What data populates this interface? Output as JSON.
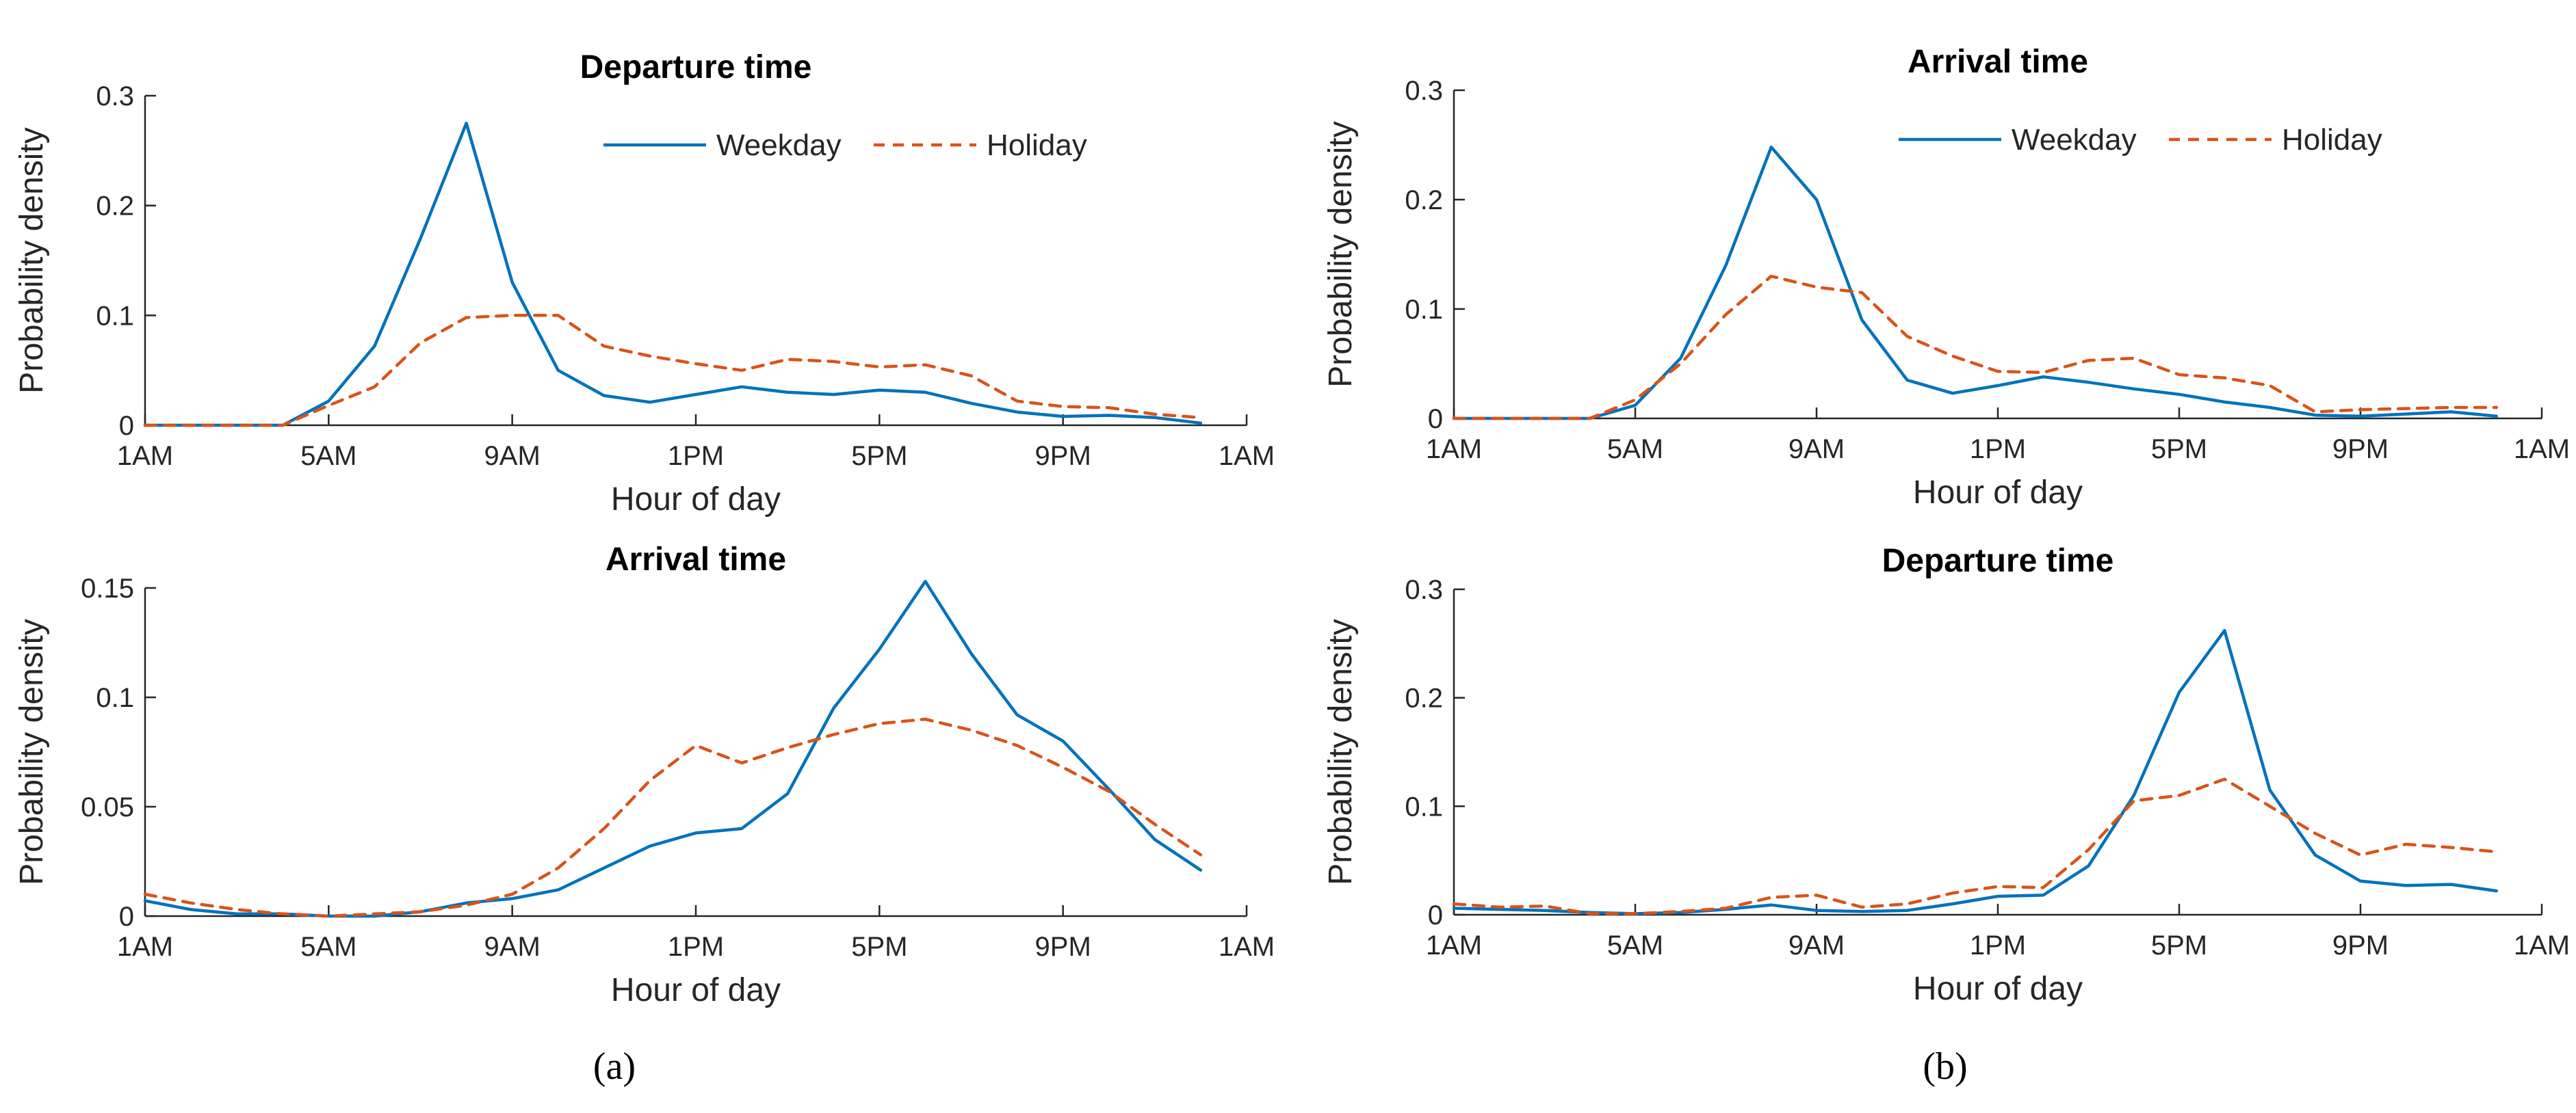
{
  "colors": {
    "weekday": "#0072BD",
    "holiday": "#D95319"
  },
  "captions": [
    {
      "name": "caption-a",
      "text": "(a)"
    },
    {
      "name": "caption-b",
      "text": "(b)"
    }
  ],
  "chart_data": [
    {
      "type": "line",
      "panel": "a-top",
      "title": "Departure time",
      "xlabel": "Hour of day",
      "ylabel": "Probability density",
      "xlim": [
        1,
        25
      ],
      "ylim": [
        0,
        0.3
      ],
      "xticks": [
        1,
        5,
        9,
        13,
        17,
        21,
        25
      ],
      "xticklabels": [
        "1AM",
        "5AM",
        "9AM",
        "1PM",
        "5PM",
        "9PM",
        "1AM"
      ],
      "yticks": [
        0,
        0.1,
        0.2,
        0.3
      ],
      "yticklabels": [
        "0",
        "0.1",
        "0.2",
        "0.3"
      ],
      "legend": "top-right",
      "x": [
        1,
        2,
        3,
        4,
        5,
        6,
        7,
        8,
        9,
        10,
        11,
        12,
        13,
        14,
        15,
        16,
        17,
        18,
        19,
        20,
        21,
        22,
        23,
        24
      ],
      "series": [
        {
          "name": "Weekday",
          "style": "solid",
          "values": [
            0,
            0,
            0,
            0,
            0.022,
            0.072,
            0.17,
            0.275,
            0.13,
            0.05,
            0.027,
            0.021,
            0.028,
            0.035,
            0.03,
            0.028,
            0.032,
            0.03,
            0.02,
            0.012,
            0.008,
            0.009,
            0.007,
            0.002
          ]
        },
        {
          "name": "Holiday",
          "style": "dashed",
          "values": [
            0,
            0,
            0,
            0,
            0.018,
            0.035,
            0.075,
            0.098,
            0.1,
            0.1,
            0.072,
            0.063,
            0.056,
            0.05,
            0.06,
            0.058,
            0.053,
            0.055,
            0.045,
            0.022,
            0.017,
            0.016,
            0.01,
            0.007
          ]
        }
      ]
    },
    {
      "type": "line",
      "panel": "a-bottom",
      "title": "Arrival time",
      "xlabel": "Hour of day",
      "ylabel": "Probability density",
      "xlim": [
        1,
        25
      ],
      "ylim": [
        0,
        0.15
      ],
      "xticks": [
        1,
        5,
        9,
        13,
        17,
        21,
        25
      ],
      "xticklabels": [
        "1AM",
        "5AM",
        "9AM",
        "1PM",
        "5PM",
        "9PM",
        "1AM"
      ],
      "yticks": [
        0,
        0.05,
        0.1,
        0.15
      ],
      "yticklabels": [
        "0",
        "0.05",
        "0.1",
        "0.15"
      ],
      "x": [
        1,
        2,
        3,
        4,
        5,
        6,
        7,
        8,
        9,
        10,
        11,
        12,
        13,
        14,
        15,
        16,
        17,
        18,
        19,
        20,
        21,
        22,
        23,
        24
      ],
      "series": [
        {
          "name": "Weekday",
          "style": "solid",
          "values": [
            0.007,
            0.003,
            0.001,
            0.001,
            0,
            0,
            0.002,
            0.006,
            0.008,
            0.012,
            0.022,
            0.032,
            0.038,
            0.04,
            0.056,
            0.095,
            0.122,
            0.153,
            0.12,
            0.092,
            0.08,
            0.058,
            0.035,
            0.021
          ]
        },
        {
          "name": "Holiday",
          "style": "dashed",
          "values": [
            0.01,
            0.006,
            0.003,
            0.001,
            0,
            0.001,
            0.002,
            0.005,
            0.01,
            0.022,
            0.04,
            0.062,
            0.078,
            0.07,
            0.077,
            0.083,
            0.088,
            0.09,
            0.085,
            0.078,
            0.068,
            0.057,
            0.042,
            0.028
          ]
        }
      ]
    },
    {
      "type": "line",
      "panel": "b-top",
      "title": "Arrival time",
      "xlabel": "Hour of day",
      "ylabel": "Probability density",
      "xlim": [
        1,
        25
      ],
      "ylim": [
        0,
        0.3
      ],
      "xticks": [
        1,
        5,
        9,
        13,
        17,
        21,
        25
      ],
      "xticklabels": [
        "1AM",
        "5AM",
        "9AM",
        "1PM",
        "5PM",
        "9PM",
        "1AM"
      ],
      "yticks": [
        0,
        0.1,
        0.2,
        0.3
      ],
      "yticklabels": [
        "0",
        "0.1",
        "0.2",
        "0.3"
      ],
      "legend": "top-right",
      "x": [
        1,
        2,
        3,
        4,
        5,
        6,
        7,
        8,
        9,
        10,
        11,
        12,
        13,
        14,
        15,
        16,
        17,
        18,
        19,
        20,
        21,
        22,
        23,
        24
      ],
      "series": [
        {
          "name": "Weekday",
          "style": "solid",
          "values": [
            0,
            0,
            0,
            0,
            0.012,
            0.055,
            0.14,
            0.248,
            0.2,
            0.09,
            0.035,
            0.023,
            0.03,
            0.038,
            0.033,
            0.027,
            0.022,
            0.015,
            0.01,
            0.003,
            0.002,
            0.004,
            0.006,
            0.002
          ]
        },
        {
          "name": "Holiday",
          "style": "dashed",
          "values": [
            0,
            0,
            0,
            0,
            0.017,
            0.05,
            0.095,
            0.13,
            0.12,
            0.115,
            0.075,
            0.057,
            0.043,
            0.042,
            0.053,
            0.055,
            0.04,
            0.037,
            0.03,
            0.006,
            0.008,
            0.009,
            0.01,
            0.01
          ]
        }
      ]
    },
    {
      "type": "line",
      "panel": "b-bottom",
      "title": "Departure time",
      "xlabel": "Hour of day",
      "ylabel": "Probability density",
      "xlim": [
        1,
        25
      ],
      "ylim": [
        0,
        0.3
      ],
      "xticks": [
        1,
        5,
        9,
        13,
        17,
        21,
        25
      ],
      "xticklabels": [
        "1AM",
        "5AM",
        "9AM",
        "1PM",
        "5PM",
        "9PM",
        "1AM"
      ],
      "yticks": [
        0,
        0.1,
        0.2,
        0.3
      ],
      "yticklabels": [
        "0",
        "0.1",
        "0.2",
        "0.3"
      ],
      "x": [
        1,
        2,
        3,
        4,
        5,
        6,
        7,
        8,
        9,
        10,
        11,
        12,
        13,
        14,
        15,
        16,
        17,
        18,
        19,
        20,
        21,
        22,
        23,
        24
      ],
      "series": [
        {
          "name": "Weekday",
          "style": "solid",
          "values": [
            0.006,
            0.005,
            0.004,
            0.002,
            0.001,
            0.002,
            0.005,
            0.009,
            0.004,
            0.003,
            0.004,
            0.01,
            0.017,
            0.018,
            0.045,
            0.11,
            0.205,
            0.262,
            0.115,
            0.055,
            0.031,
            0.027,
            0.028,
            0.022
          ]
        },
        {
          "name": "Holiday",
          "style": "dashed",
          "values": [
            0.01,
            0.007,
            0.008,
            0.001,
            0.001,
            0.003,
            0.006,
            0.016,
            0.018,
            0.007,
            0.01,
            0.02,
            0.026,
            0.025,
            0.06,
            0.105,
            0.11,
            0.125,
            0.1,
            0.075,
            0.055,
            0.065,
            0.062,
            0.058
          ]
        }
      ]
    }
  ]
}
